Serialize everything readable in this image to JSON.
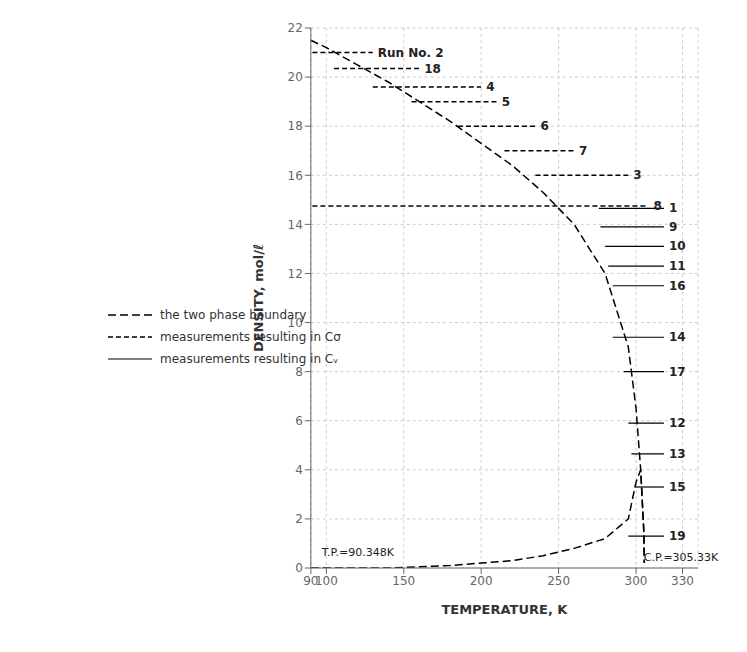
{
  "chart_data": {
    "type": "line",
    "xlabel": "TEMPERATURE, K",
    "ylabel": "DENSITY, mol/ℓ",
    "xlim": [
      90,
      340
    ],
    "ylim": [
      0,
      22
    ],
    "xticks": [
      90,
      100,
      150,
      200,
      250,
      300,
      330
    ],
    "yticks": [
      0,
      2,
      4,
      6,
      8,
      10,
      12,
      14,
      16,
      18,
      20,
      22
    ],
    "grid": true,
    "legend": "lower left",
    "series": [
      {
        "name": "the two phase boundary",
        "color": "#000000",
        "line_style": "long_dashed",
        "lines": [
          {
            "x": [
              90,
              100,
              120,
              140,
              160,
              180,
              200,
              220,
              240,
              260,
              280,
              295,
              300,
              303,
              305,
              305.33
            ],
            "values": [
              21.5,
              21.2,
              20.5,
              19.8,
              19.0,
              18.2,
              17.3,
              16.4,
              15.3,
              14.0,
              12.0,
              9.0,
              6.5,
              4.0,
              1.5,
              0.2
            ]
          },
          {
            "x": [
              90,
              100,
              120,
              140,
              160,
              180,
              200,
              220,
              240,
              260,
              280,
              295,
              300,
              303,
              305,
              305.33
            ],
            "values": [
              0.0,
              0.0,
              0.0,
              0.0,
              0.05,
              0.1,
              0.2,
              0.3,
              0.5,
              0.8,
              1.2,
              2.0,
              3.5,
              4.0,
              1.5,
              0.2
            ]
          }
        ]
      },
      {
        "name": "measurements resulting in Cσ",
        "color": "#000000",
        "line_style": "dashed",
        "lines": [
          {
            "label": "Run No. 2",
            "x": [
              91,
              130
            ],
            "values": [
              21.0,
              21.0
            ]
          },
          {
            "label": "18",
            "x": [
              105,
              160
            ],
            "values": [
              20.35,
              20.35
            ]
          },
          {
            "label": "4",
            "x": [
              130,
              200
            ],
            "values": [
              19.6,
              19.6
            ]
          },
          {
            "label": "5",
            "x": [
              155,
              210
            ],
            "values": [
              19.0,
              19.0
            ]
          },
          {
            "label": "6",
            "x": [
              185,
              235
            ],
            "values": [
              18.0,
              18.0
            ]
          },
          {
            "label": "7",
            "x": [
              215,
              260
            ],
            "values": [
              17.0,
              17.0
            ]
          },
          {
            "label": "3",
            "x": [
              235,
              295
            ],
            "values": [
              16.0,
              16.0
            ]
          },
          {
            "label": "8",
            "x": [
              91,
              308
            ],
            "values": [
              14.75,
              14.75
            ]
          }
        ]
      },
      {
        "name": "measurements resulting in Cᵥ",
        "color": "#000000",
        "line_style": "solid",
        "lines": [
          {
            "label": "1",
            "x": [
              276,
              318
            ],
            "values": [
              14.65,
              14.65
            ]
          },
          {
            "label": "9",
            "x": [
              277,
              318
            ],
            "values": [
              13.9,
              13.9
            ]
          },
          {
            "label": "10",
            "x": [
              280,
              318
            ],
            "values": [
              13.1,
              13.1
            ]
          },
          {
            "label": "11",
            "x": [
              282,
              318
            ],
            "values": [
              12.3,
              12.3
            ]
          },
          {
            "label": "16",
            "x": [
              285,
              318
            ],
            "values": [
              11.5,
              11.5
            ]
          },
          {
            "label": "14",
            "x": [
              285,
              318
            ],
            "values": [
              9.4,
              9.4
            ]
          },
          {
            "label": "17",
            "x": [
              292,
              318
            ],
            "values": [
              8.0,
              8.0
            ]
          },
          {
            "label": "12",
            "x": [
              295,
              318
            ],
            "values": [
              5.9,
              5.9
            ]
          },
          {
            "label": "13",
            "x": [
              297,
              318
            ],
            "values": [
              4.65,
              4.65
            ]
          },
          {
            "label": "15",
            "x": [
              299,
              318
            ],
            "values": [
              3.3,
              3.3
            ]
          },
          {
            "label": "19",
            "x": [
              295,
              318
            ],
            "values": [
              1.3,
              1.3
            ]
          }
        ]
      }
    ],
    "annotations": [
      {
        "text": "T.P.=90.348K",
        "x": 97,
        "y": 0.5
      },
      {
        "text": "C.P.=305.33K",
        "x": 305,
        "y": 0.3
      }
    ]
  }
}
